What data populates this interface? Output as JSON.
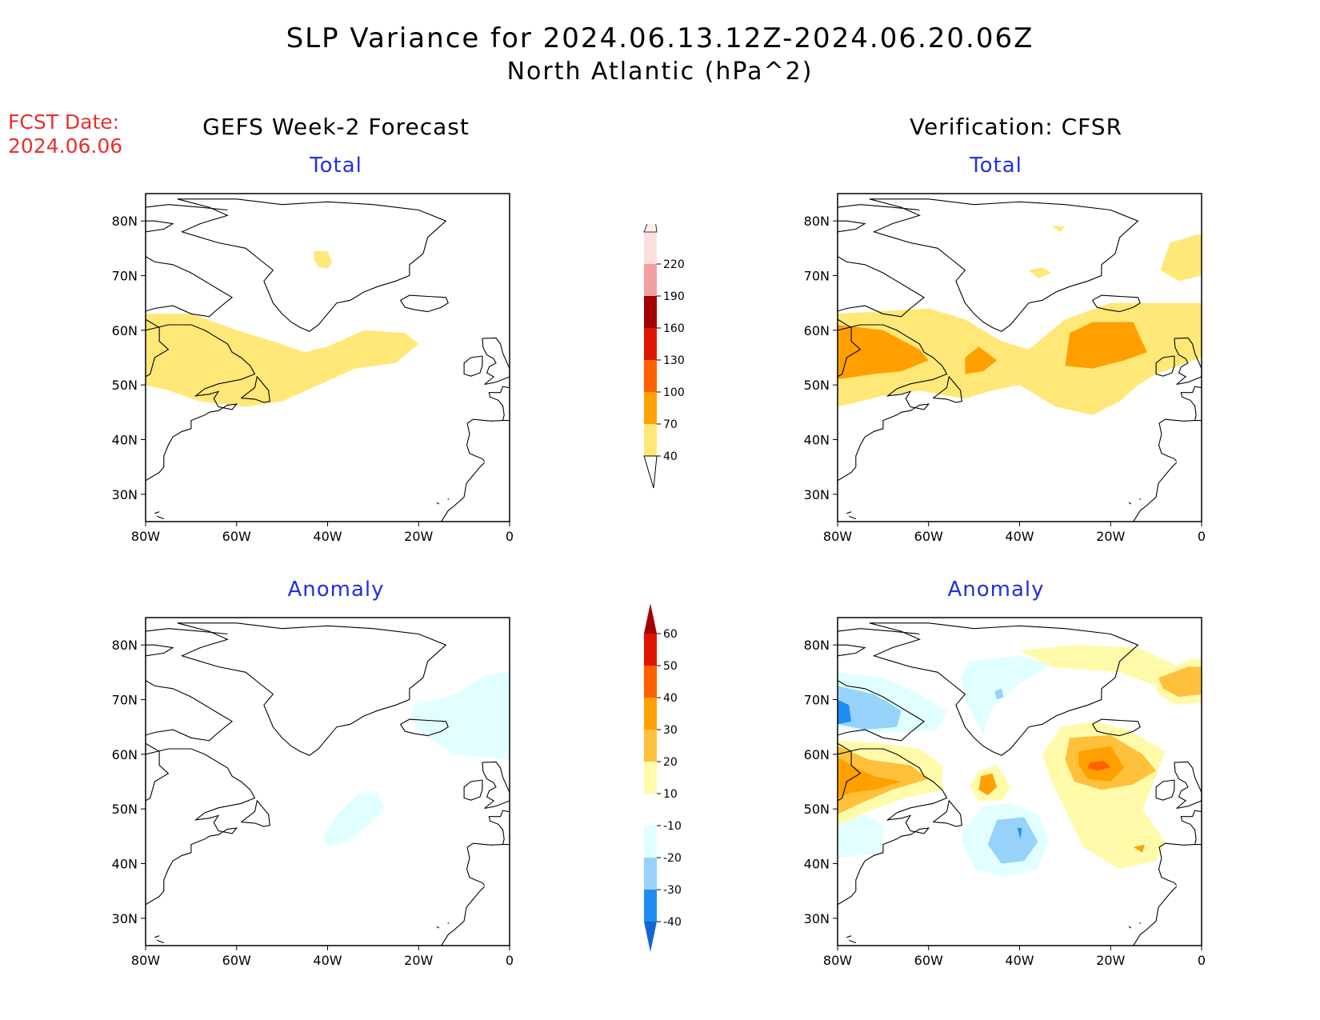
{
  "title": {
    "line1": "SLP Variance for 2024.06.13.12Z-2024.06.20.06Z",
    "line2": "North Atlantic (hPa^2)"
  },
  "fcst": {
    "label": "FCST Date:",
    "date": "2024.06.06"
  },
  "columns": {
    "left": "GEFS Week-2 Forecast",
    "right": "Verification: CFSR"
  },
  "panels": {
    "forecast_total": "Total",
    "forecast_anomaly": "Anomaly",
    "verification_total": "Total",
    "verification_anomaly": "Anomaly"
  },
  "map_axes": {
    "lat_labels": [
      "80N",
      "70N",
      "60N",
      "50N",
      "40N",
      "30N"
    ],
    "lon_labels": [
      "80W",
      "60W",
      "40W",
      "20W",
      "0"
    ]
  },
  "colorbar_total": {
    "levels": [
      "40",
      "70",
      "100",
      "130",
      "160",
      "190",
      "220"
    ],
    "colors": [
      "#ffe878",
      "#ffa000",
      "#ff6000",
      "#e11400",
      "#a50000",
      "#f0a0a0",
      "#fce0e0"
    ]
  },
  "colorbar_anomaly": {
    "levels": [
      "-40",
      "-30",
      "-20",
      "-10",
      "10",
      "20",
      "30",
      "40",
      "50",
      "60"
    ],
    "colors": [
      "#1464d2",
      "#1e8cf0",
      "#96d2fa",
      "#e1ffff",
      "#ffffff",
      "#fffaaa",
      "#ffc03c",
      "#ffa000",
      "#ff6000",
      "#e11400",
      "#a50000"
    ]
  }
}
